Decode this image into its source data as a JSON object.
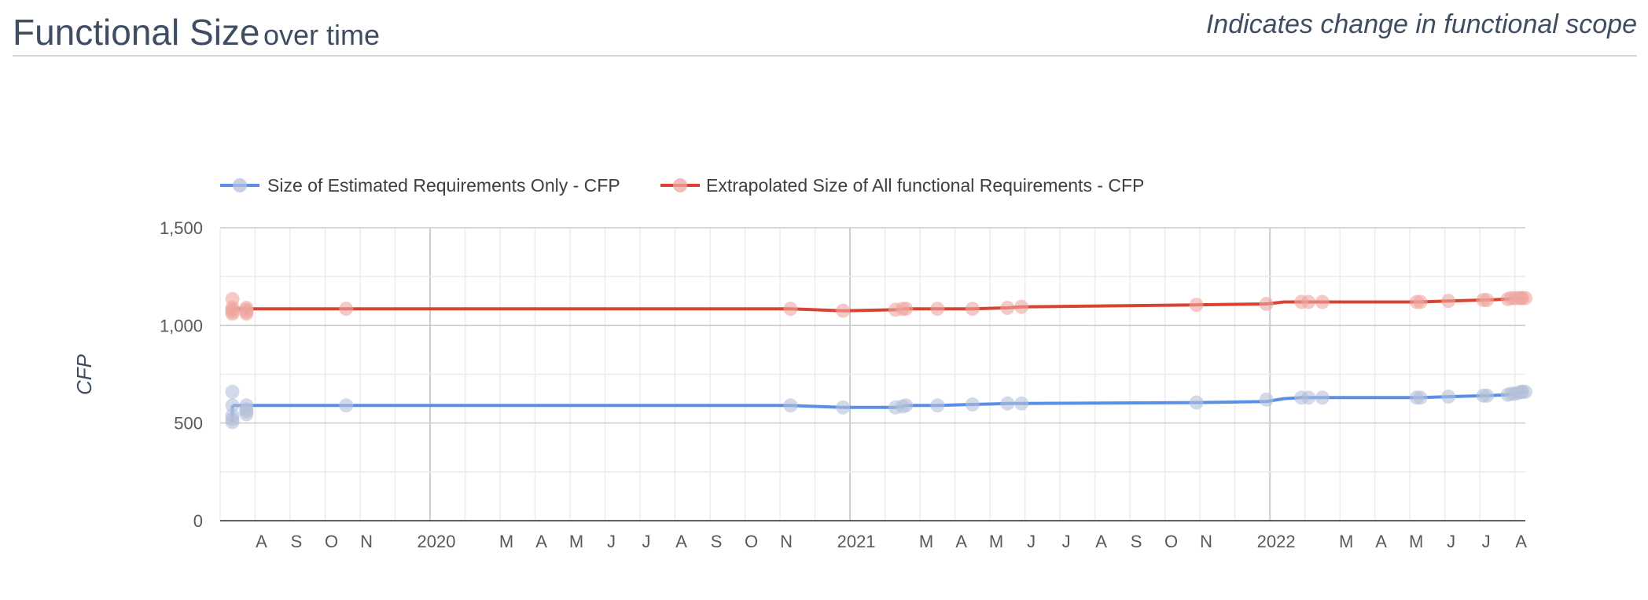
{
  "header": {
    "title_main": "Functional Size",
    "title_sub": "over time",
    "note": "Indicates change in functional scope"
  },
  "chart_data": {
    "type": "line",
    "title": "Functional Size over time",
    "xlabel": "",
    "ylabel": "CFP",
    "ylim": [
      0,
      1500
    ],
    "yticks": [
      0,
      500,
      1000,
      1500
    ],
    "ytick_labels": [
      "0",
      "500",
      "1,000",
      "1,500"
    ],
    "x_unit": "months since 2019-07-01",
    "xlim": [
      0.35,
      37.3
    ],
    "x_ticks": [
      {
        "x": 1,
        "label": "A"
      },
      {
        "x": 2,
        "label": "S"
      },
      {
        "x": 3,
        "label": "O"
      },
      {
        "x": 4,
        "label": "N"
      },
      {
        "x": 6,
        "label": "2020"
      },
      {
        "x": 8,
        "label": "M"
      },
      {
        "x": 9,
        "label": "A"
      },
      {
        "x": 10,
        "label": "M"
      },
      {
        "x": 11,
        "label": "J"
      },
      {
        "x": 12,
        "label": "J"
      },
      {
        "x": 13,
        "label": "A"
      },
      {
        "x": 14,
        "label": "S"
      },
      {
        "x": 15,
        "label": "O"
      },
      {
        "x": 16,
        "label": "N"
      },
      {
        "x": 18,
        "label": "2021"
      },
      {
        "x": 20,
        "label": "M"
      },
      {
        "x": 21,
        "label": "A"
      },
      {
        "x": 22,
        "label": "M"
      },
      {
        "x": 23,
        "label": "J"
      },
      {
        "x": 24,
        "label": "J"
      },
      {
        "x": 25,
        "label": "A"
      },
      {
        "x": 26,
        "label": "S"
      },
      {
        "x": 27,
        "label": "O"
      },
      {
        "x": 28,
        "label": "N"
      },
      {
        "x": 30,
        "label": "2022"
      },
      {
        "x": 32,
        "label": "M"
      },
      {
        "x": 33,
        "label": "A"
      },
      {
        "x": 34,
        "label": "M"
      },
      {
        "x": 35,
        "label": "J"
      },
      {
        "x": 36,
        "label": "J"
      },
      {
        "x": 37,
        "label": "A"
      }
    ],
    "x_gridlines": [
      0,
      1,
      2,
      3,
      4,
      5,
      6,
      7,
      8,
      9,
      10,
      11,
      12,
      13,
      14,
      15,
      16,
      17,
      18,
      19,
      20,
      21,
      22,
      23,
      24,
      25,
      26,
      27,
      28,
      29,
      30,
      31,
      32,
      33,
      34,
      35,
      36,
      37
    ],
    "x_major_gridlines": [
      6,
      18,
      30
    ],
    "series": [
      {
        "name": "Size of Estimated Requirements Only - CFP",
        "color": "#5b8ee6",
        "point_color": "#b4bfd9",
        "x": [
          0.35,
          0.35,
          0.35,
          0.35,
          0.35,
          0.75,
          0.75,
          0.75,
          0.75,
          3.6,
          16.3,
          17.8,
          19.3,
          19.5,
          19.6,
          20.5,
          21.5,
          22.5,
          22.9,
          27.9,
          29.9,
          30.9,
          31.1,
          31.5,
          34.2,
          34.3,
          35.1,
          36.1,
          36.2,
          36.8,
          36.9,
          37.0,
          37.1,
          37.2,
          37.2,
          37.3
        ],
        "values": [
          660,
          590,
          540,
          520,
          505,
          590,
          570,
          560,
          545,
          590,
          590,
          580,
          580,
          585,
          590,
          590,
          595,
          600,
          600,
          605,
          620,
          630,
          630,
          630,
          630,
          630,
          635,
          640,
          640,
          645,
          650,
          650,
          655,
          660,
          660,
          660
        ]
      },
      {
        "name": "Extrapolated Size of All functional Requirements - CFP",
        "color": "#d84332",
        "point_color": "#eea7a0",
        "x": [
          0.35,
          0.35,
          0.35,
          0.35,
          0.35,
          0.75,
          0.75,
          0.75,
          0.75,
          3.6,
          16.3,
          17.8,
          19.3,
          19.5,
          19.6,
          20.5,
          21.5,
          22.5,
          22.9,
          27.9,
          29.9,
          30.9,
          31.1,
          31.5,
          34.2,
          34.3,
          35.1,
          36.1,
          36.2,
          36.8,
          36.9,
          37.0,
          37.1,
          37.2,
          37.2,
          37.3
        ],
        "values": [
          1135,
          1090,
          1080,
          1070,
          1060,
          1090,
          1080,
          1070,
          1060,
          1085,
          1085,
          1075,
          1080,
          1085,
          1085,
          1085,
          1085,
          1090,
          1095,
          1105,
          1110,
          1120,
          1120,
          1120,
          1120,
          1120,
          1125,
          1130,
          1130,
          1135,
          1140,
          1140,
          1140,
          1140,
          1140,
          1140
        ]
      }
    ],
    "line_x": [
      0.35,
      0.75,
      3.6,
      16.3,
      17.8,
      19.3,
      19.5,
      19.6,
      20.5,
      21.5,
      22.5,
      22.9,
      27.9,
      29.9,
      30.4,
      30.9,
      31.1,
      31.5,
      34.2,
      34.3,
      35.1,
      36.1,
      36.2,
      36.8,
      36.9,
      37.0,
      37.1,
      37.2,
      37.3
    ],
    "line_values": [
      [
        590,
        590,
        590,
        590,
        580,
        580,
        585,
        590,
        590,
        595,
        600,
        600,
        605,
        610,
        625,
        630,
        630,
        630,
        630,
        630,
        635,
        640,
        640,
        645,
        650,
        650,
        655,
        660,
        660
      ],
      [
        1085,
        1085,
        1085,
        1085,
        1075,
        1080,
        1085,
        1085,
        1085,
        1085,
        1090,
        1095,
        1105,
        1110,
        1120,
        1120,
        1120,
        1120,
        1120,
        1120,
        1125,
        1130,
        1130,
        1135,
        1140,
        1140,
        1140,
        1140,
        1140
      ]
    ],
    "spikes": [
      {
        "series": 0,
        "x": 0.35,
        "from": 505,
        "to": 590
      },
      {
        "series": 1,
        "x": 0.35,
        "from": 1055,
        "to": 1090
      },
      {
        "series": 1,
        "x": 0.75,
        "from": 1055,
        "to": 1090
      }
    ],
    "legend": {
      "position": "top-left"
    }
  }
}
